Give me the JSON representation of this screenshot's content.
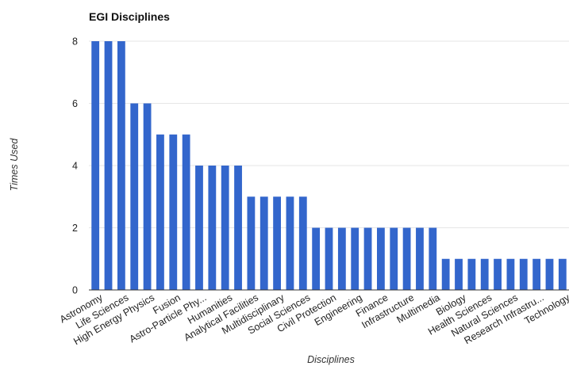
{
  "chart_data": {
    "type": "bar",
    "title": "EGI Disciplines",
    "xlabel": "Disciplines",
    "ylabel": "Times Used",
    "ylim": [
      0,
      8
    ],
    "yticks": [
      "0",
      "2",
      "4",
      "6",
      "8"
    ],
    "grid": true,
    "legend": "none",
    "bar_color": "#3366cc",
    "tick_labels": [
      "Astronomy",
      "Life Sciences",
      "High Energy Physics",
      "Fusion",
      "Astro-Particle Phy...",
      "Humanities",
      "Analytical Facilities",
      "Multidisciplinary",
      "Social Sciences",
      "Civil Protection",
      "Engineering",
      "Finance",
      "Infrastructure",
      "Multimedia",
      "Biology",
      "Health Sciences",
      "Natural Sciences",
      "Research Infrastru...",
      "Technology"
    ],
    "values": [
      8,
      8,
      8,
      6,
      6,
      5,
      5,
      5,
      4,
      4,
      4,
      4,
      3,
      3,
      3,
      3,
      3,
      2,
      2,
      2,
      2,
      2,
      2,
      2,
      2,
      2,
      2,
      1,
      1,
      1,
      1,
      1,
      1,
      1,
      1,
      1,
      1
    ]
  }
}
